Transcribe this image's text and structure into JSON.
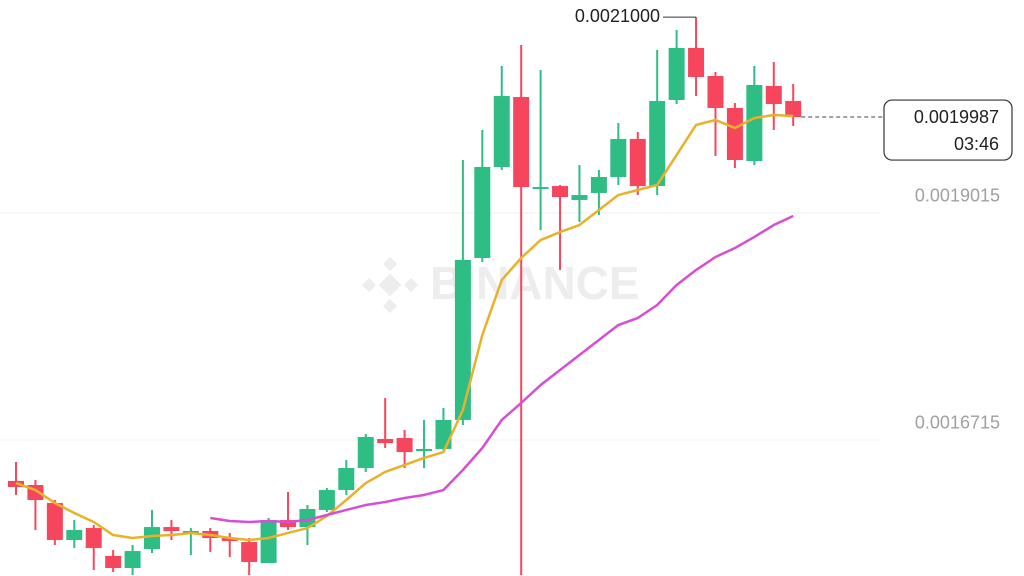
{
  "chart_data": {
    "type": "candlestick",
    "watermark": "BINANCE",
    "up_color": "#2ebd85",
    "down_color": "#f6465d",
    "ylim": [
      0.0015337,
      0.0021173
    ],
    "yticks": [
      0.0016715,
      0.0019015
    ],
    "grid": true,
    "last_price": 0.0019987,
    "countdown": "03:46",
    "high_annotation": {
      "value": 0.0021,
      "label": "0.0021000"
    },
    "open": [
      0.00163,
      0.0016259,
      0.0016077,
      0.0015702,
      0.0015823,
      0.001554,
      0.0015418,
      0.001561,
      0.0015833,
      0.0015783,
      0.0015793,
      0.0015722,
      0.0015681,
      0.0015469,
      0.0015904,
      0.0015833,
      0.0016006,
      0.0016208,
      0.0016431,
      0.0016725,
      0.0016735,
      0.0016603,
      0.0016624,
      0.0016918,
      0.0018559,
      0.0019481,
      0.002019,
      0.0019258,
      0.0019288,
      0.0019147,
      0.0019218,
      0.001938,
      0.0019765,
      0.0019288,
      0.002016,
      0.0020687,
      0.0020403,
      0.0020079,
      0.0019542,
      0.0020302,
      0.002015
    ],
    "high": [
      0.0016492,
      0.001631,
      0.0016107,
      0.0015904,
      0.0015854,
      0.00156,
      0.0015651,
      0.0016006,
      0.0015904,
      0.0015823,
      0.0015823,
      0.0015773,
      0.0015722,
      0.0015925,
      0.0016188,
      0.0016056,
      0.0016229,
      0.0016512,
      0.0016776,
      0.001714,
      0.0016816,
      0.0016918,
      0.0017039,
      0.0019552,
      0.0019856,
      0.0020504,
      0.0020717,
      0.0020464,
      0.0019299,
      0.0019501,
      0.0019451,
      0.0019927,
      0.0019836,
      0.0020666,
      0.0020869,
      0.0021,
      0.0020443,
      0.0020129,
      0.0020504,
      0.0020545,
      0.0020322
    ],
    "low": [
      0.0016158,
      0.0015803,
      0.0015651,
      0.0015621,
      0.0015398,
      0.0015377,
      0.0015347,
      0.001557,
      0.0015702,
      0.001555,
      0.001558,
      0.0015529,
      0.0015347,
      0.0015469,
      0.0015803,
      0.0015651,
      0.0015985,
      0.0016158,
      0.0016391,
      0.0016634,
      0.0016431,
      0.0016431,
      0.0016593,
      0.0016867,
      0.0018518,
      0.0019451,
      0.0015347,
      0.0018843,
      0.0018437,
      0.0018924,
      0.0018995,
      0.0019299,
      0.0019197,
      0.0019197,
      0.0020119,
      0.00202,
      0.0019592,
      0.0019471,
      0.0019501,
      0.0019856,
      0.0019896
    ],
    "close": [
      0.0016239,
      0.0016107,
      0.0015702,
      0.0015803,
      0.0015621,
      0.0015418,
      0.001559,
      0.0015833,
      0.0015793,
      0.0015793,
      0.0015722,
      0.0015692,
      0.0015479,
      0.0015904,
      0.0015833,
      0.0016016,
      0.0016208,
      0.0016431,
      0.0016745,
      0.0016684,
      0.0016593,
      0.0016624,
      0.0016918,
      0.0018539,
      0.0019481,
      0.00202,
      0.0019278,
      0.0019278,
      0.0019177,
      0.0019197,
      0.001938,
      0.0019765,
      0.0019288,
      0.002015,
      0.0020687,
      0.0020393,
      0.0020079,
      0.0019552,
      0.0020312,
      0.0020119,
      0.0019987
    ],
    "ma": [
      {
        "color": "#e9b12a",
        "values": [
          0.0016279,
          0.0016208,
          0.0016077,
          0.0015975,
          0.0015884,
          0.0015752,
          0.0015722,
          0.0015742,
          0.0015752,
          0.0015773,
          0.0015752,
          0.0015722,
          0.0015702,
          0.0015722,
          0.0015773,
          0.0015823,
          0.0015945,
          0.0016107,
          0.0016279,
          0.0016391,
          0.0016462,
          0.0016533,
          0.0016593,
          0.0017019,
          0.0017779,
          0.0018336,
          0.0018559,
          0.0018741,
          0.0018822,
          0.0018893,
          0.0019045,
          0.0019197,
          0.0019248,
          0.0019299,
          0.0019603,
          0.0019907,
          0.0019957,
          0.0019876,
          0.0019977,
          0.0020008,
          0.0019998
        ]
      },
      {
        "color": "#d64fd2",
        "values": [
          null,
          null,
          null,
          null,
          null,
          null,
          null,
          null,
          null,
          null,
          0.0015925,
          0.0015894,
          0.0015884,
          0.0015894,
          0.0015884,
          0.0015904,
          0.0015955,
          0.0016006,
          0.0016056,
          0.0016087,
          0.0016127,
          0.0016158,
          0.0016208,
          0.0016411,
          0.0016634,
          0.0016918,
          0.001709,
          0.0017272,
          0.0017424,
          0.0017576,
          0.0017728,
          0.001788,
          0.0017951,
          0.0018083,
          0.0018285,
          0.0018437,
          0.0018569,
          0.001866,
          0.0018772,
          0.0018893,
          0.0018985
        ]
      }
    ]
  }
}
